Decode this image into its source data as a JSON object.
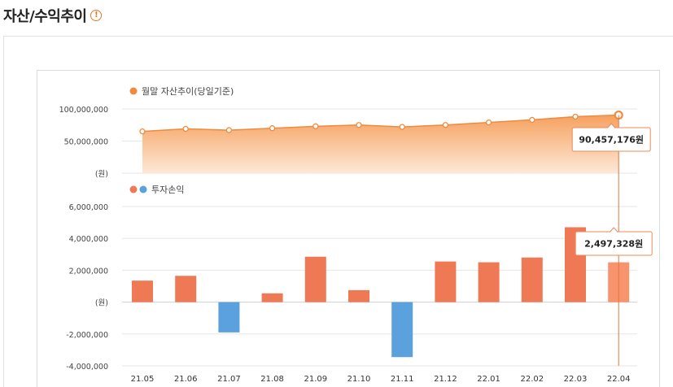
{
  "header": {
    "title": "자산/수익추이",
    "info_icon": "!"
  },
  "chart_data": [
    {
      "type": "area",
      "legend": "월말 자산추이(당일기준)",
      "unit_label": "(원)",
      "y_ticks": [
        "100,000,000",
        "50,000,000"
      ],
      "ylim": [
        0,
        100000000
      ],
      "categories": [
        "21.05",
        "21.06",
        "21.07",
        "21.08",
        "21.09",
        "21.10",
        "21.11",
        "21.12",
        "22.01",
        "22.02",
        "22.03",
        "22.04"
      ],
      "values": [
        65000000,
        69000000,
        67000000,
        70000000,
        73000000,
        75000000,
        72000000,
        75000000,
        79000000,
        83000000,
        88000000,
        90457176
      ],
      "tooltip": "90,457,176원",
      "colors": {
        "line": "#f08a3c",
        "fill_top": "#f6a15f",
        "fill_bottom": "#fde8d7"
      }
    },
    {
      "type": "bar",
      "legend": "투자손익",
      "unit_label": "(원)",
      "y_ticks": [
        "6,000,000",
        "4,000,000",
        "2,000,000",
        "(원)",
        "-2,000,000",
        "-4,000,000"
      ],
      "ylim": [
        -4000000,
        6000000
      ],
      "categories": [
        "21.05",
        "21.06",
        "21.07",
        "21.08",
        "21.09",
        "21.10",
        "21.11",
        "21.12",
        "22.01",
        "22.02",
        "22.03",
        "22.04"
      ],
      "values": [
        1350000,
        1650000,
        -1900000,
        550000,
        2850000,
        750000,
        -3450000,
        2550000,
        2500000,
        2800000,
        4700000,
        2497328
      ],
      "tooltip": "2,497,328원",
      "colors": {
        "positive": "#ef7955",
        "negative": "#5ba1de",
        "highlight": "#f9936e"
      }
    }
  ]
}
